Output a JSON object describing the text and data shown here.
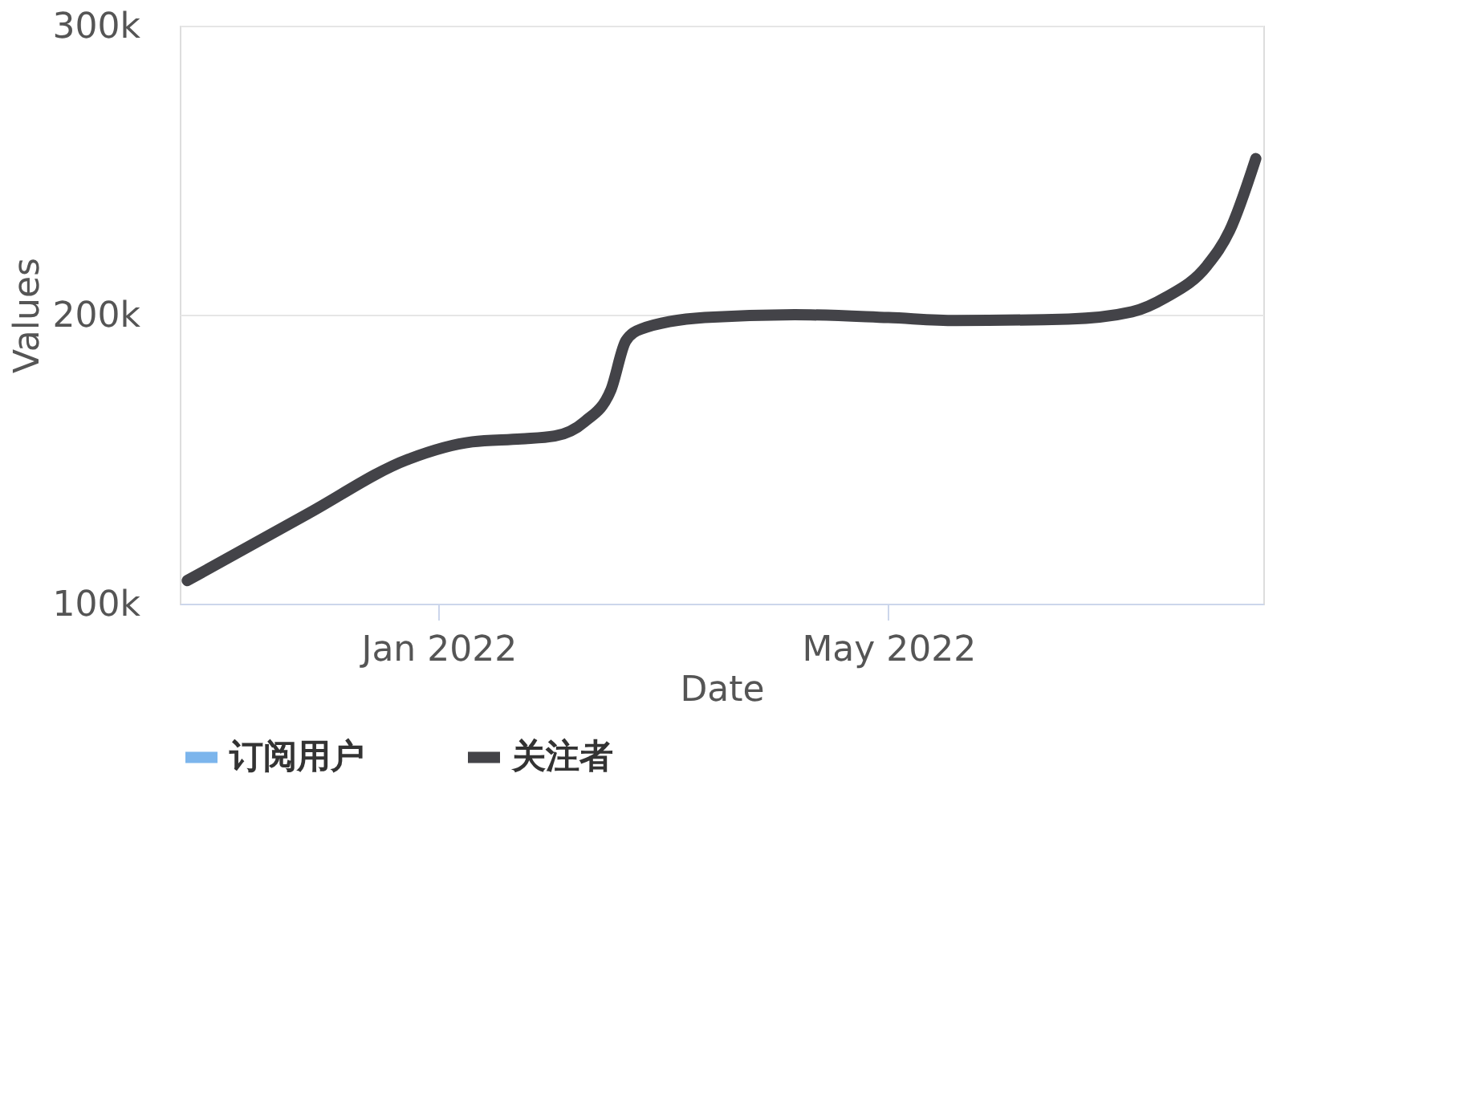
{
  "chart_data": {
    "type": "line",
    "xlabel": "Date",
    "ylabel": "Values",
    "x": [
      "2021-10-26",
      "2021-11-27",
      "2021-12-24",
      "2022-01-10",
      "2022-01-23",
      "2022-02-01",
      "2022-02-09",
      "2022-02-16",
      "2022-02-20",
      "2022-02-24",
      "2022-03-13",
      "2022-04-06",
      "2022-05-01",
      "2022-05-19",
      "2022-06-18",
      "2022-07-05",
      "2022-07-14",
      "2022-07-25",
      "2022-07-31",
      "2022-08-07"
    ],
    "series": [
      {
        "name": "订阅用户",
        "color": "#7cb5ec",
        "values": [
          null,
          null,
          null,
          null,
          null,
          null,
          null,
          null,
          null,
          null,
          null,
          null,
          null,
          null,
          null,
          null,
          null,
          null,
          null,
          null
        ]
      },
      {
        "name": "关注者",
        "color": "#434348",
        "values": [
          108000,
          131000,
          150000,
          156000,
          157000,
          158000,
          163000,
          174000,
          191000,
          195000,
          199000,
          200000,
          199000,
          198000,
          198500,
          201000,
          206000,
          217000,
          229000,
          254000
        ]
      }
    ],
    "xlim": [
      "2021-10-24",
      "2022-08-09"
    ],
    "xticks": [
      {
        "value": "2022-01-01",
        "label": "Jan 2022"
      },
      {
        "value": "2022-05-01",
        "label": "May 2022"
      }
    ],
    "ylim": [
      100000,
      300000
    ],
    "yticks": [
      {
        "value": 100000,
        "label": "100k"
      },
      {
        "value": 200000,
        "label": "200k"
      },
      {
        "value": 300000,
        "label": "300k"
      }
    ],
    "grid": "y",
    "legend": "bottom",
    "line_style": "solid",
    "marker": "none"
  }
}
